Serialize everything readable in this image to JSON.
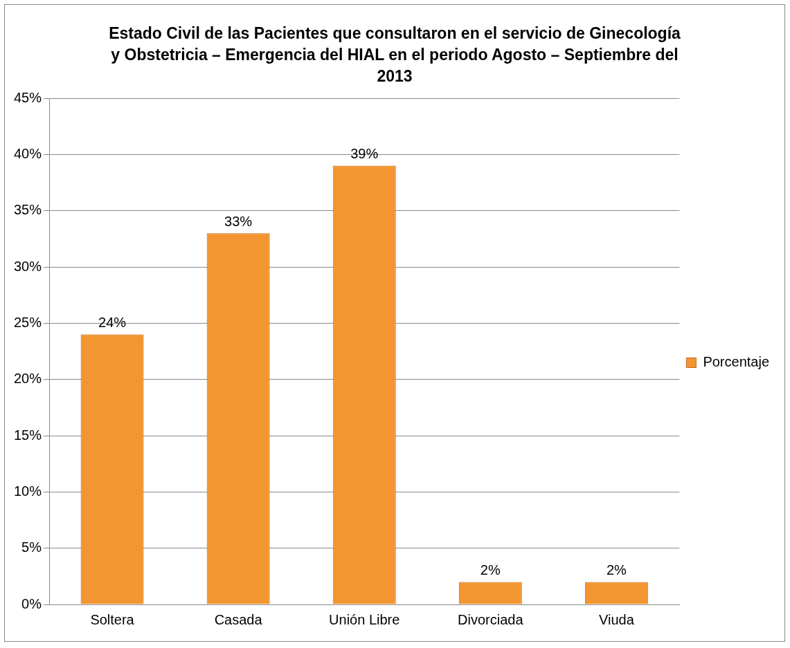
{
  "chart_data": {
    "type": "bar",
    "title": "Estado Civil de las Pacientes que consultaron en el servicio de Ginecología y Obstetricia – Emergencia del HIAL en el periodo Agosto – Septiembre del 2013",
    "categories": [
      "Soltera",
      "Casada",
      "Unión Libre",
      "Divorciada",
      "Viuda"
    ],
    "series": [
      {
        "name": "Porcentaje",
        "color": "#f39530",
        "values": [
          24,
          33,
          39,
          2,
          2
        ],
        "value_labels": [
          "24%",
          "33%",
          "39%",
          "2%",
          "2%"
        ]
      }
    ],
    "ylim": [
      0,
      45
    ],
    "yticks": [
      {
        "value": 0,
        "label": "0%"
      },
      {
        "value": 5,
        "label": "5%"
      },
      {
        "value": 10,
        "label": "10%"
      },
      {
        "value": 15,
        "label": "15%"
      },
      {
        "value": 20,
        "label": "20%"
      },
      {
        "value": 25,
        "label": "25%"
      },
      {
        "value": 30,
        "label": "30%"
      },
      {
        "value": 35,
        "label": "35%"
      },
      {
        "value": 40,
        "label": "40%"
      },
      {
        "value": 45,
        "label": "45%"
      }
    ],
    "grid": "y",
    "legend": "right"
  }
}
